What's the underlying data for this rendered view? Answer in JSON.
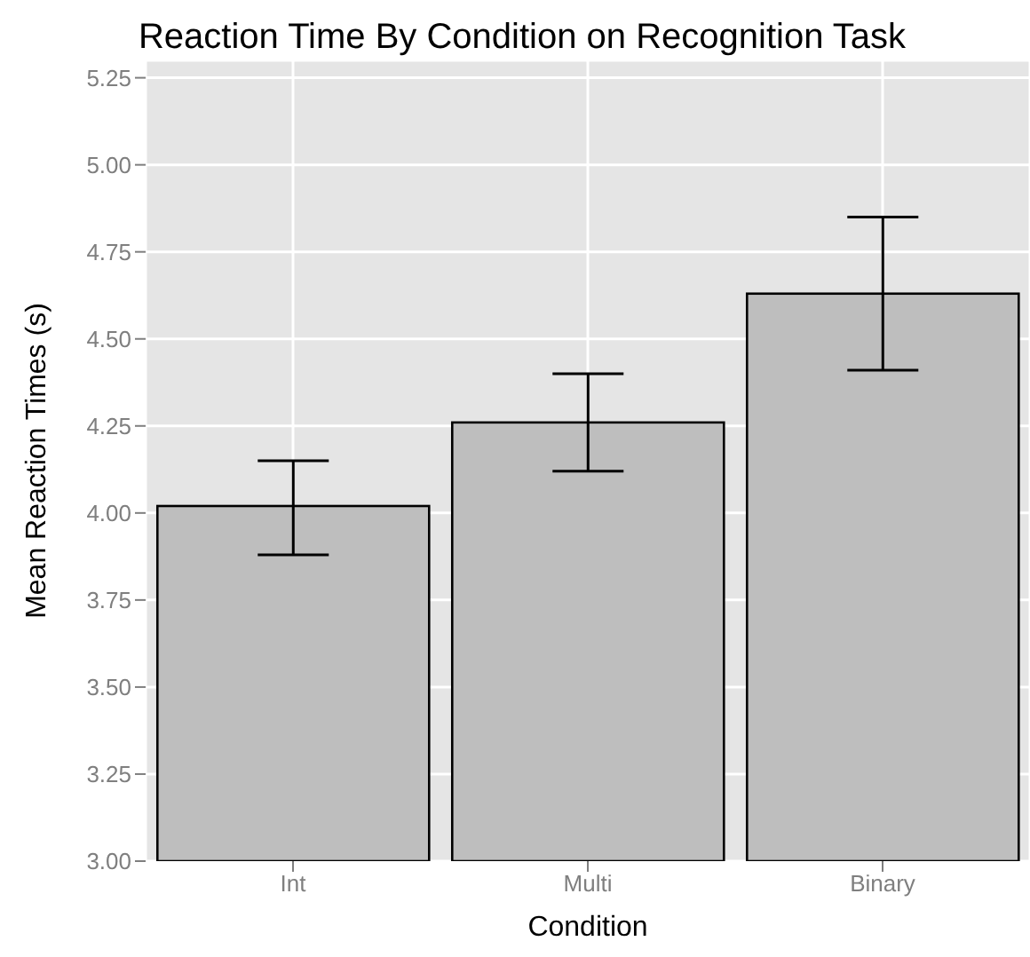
{
  "chart_data": {
    "type": "bar",
    "title": "Reaction Time By Condition on Recognition Task",
    "xlabel": "Condition",
    "ylabel": "Mean Reaction Times (s)",
    "categories": [
      "Int",
      "Multi",
      "Binary"
    ],
    "values": [
      4.02,
      4.26,
      4.63
    ],
    "errors": [
      [
        3.88,
        4.15
      ],
      [
        4.12,
        4.4
      ],
      [
        4.41,
        4.85
      ]
    ],
    "color": "#bebebe",
    "ylim": [
      3,
      5.3
    ],
    "yticks": [
      {
        "value": 3,
        "label": "3.00"
      },
      3.25,
      {
        "value": 3.5,
        "label": "3.50"
      },
      3.75,
      {
        "value": 4,
        "label": "4.00"
      },
      4.25,
      {
        "value": 4.5,
        "label": "4.50"
      },
      4.75,
      {
        "value": 5,
        "label": "5.00"
      },
      5.25
    ],
    "grid": true
  }
}
